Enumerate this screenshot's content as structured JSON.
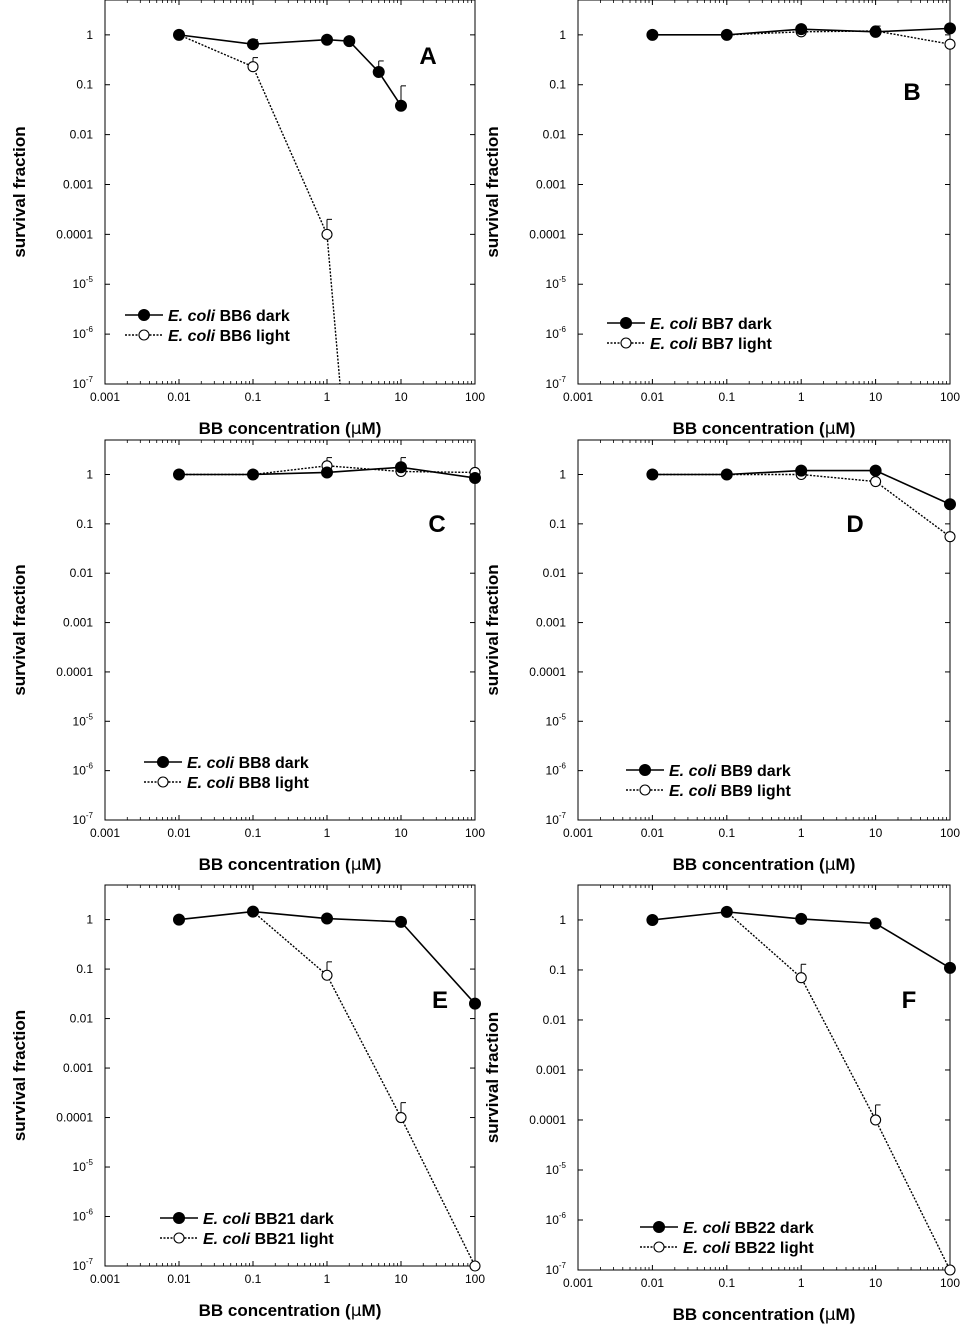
{
  "chart_data": [
    {
      "panel": "A",
      "type": "line",
      "x_scale": "log",
      "y_scale": "log",
      "xlim": [
        0.001,
        100
      ],
      "ylim": [
        1e-07,
        5
      ],
      "xlabel_pre": "BB concentration (",
      "xlabel_mu": "μ",
      "xlabel_post": "M)",
      "ylabel": "survival fraction",
      "x_ticks": [
        "0.001",
        "0.01",
        "0.1",
        "1",
        "10",
        "100"
      ],
      "y_ticks": [
        "1",
        "0.1",
        "0.01",
        "0.001",
        "0.0001",
        "10-5",
        "10-6",
        "10-7"
      ],
      "legend_position": "bottom-left",
      "series": [
        {
          "name_italic": "E. coli",
          "name_rest": " BB6 dark",
          "style": "solid-filled",
          "points": [
            [
              0.01,
              1.0
            ],
            [
              0.1,
              0.65
            ],
            [
              1,
              0.8
            ],
            [
              2,
              0.75
            ],
            [
              5,
              0.18
            ],
            [
              10,
              0.038
            ]
          ],
          "err_upper": [
            null,
            0.8,
            null,
            null,
            0.3,
            0.095
          ]
        },
        {
          "name_italic": "E. coli",
          "name_rest": " BB6 light",
          "style": "dotted-open",
          "points": [
            [
              0.01,
              1.0
            ],
            [
              0.1,
              0.23
            ],
            [
              1,
              0.0001
            ],
            [
              1.5,
              1e-07
            ]
          ],
          "err_upper": [
            null,
            0.35,
            0.0002,
            null
          ],
          "open_marker_count": 3
        }
      ]
    },
    {
      "panel": "B",
      "type": "line",
      "x_scale": "log",
      "y_scale": "log",
      "xlim": [
        0.001,
        100
      ],
      "ylim": [
        1e-07,
        5
      ],
      "xlabel_pre": "BB concentration (",
      "xlabel_mu": "μ",
      "xlabel_post": "M)",
      "ylabel": "survival fraction",
      "x_ticks": [
        "0.001",
        "0.01",
        "0.1",
        "1",
        "10",
        "100"
      ],
      "y_ticks": [
        "1",
        "0.1",
        "0.01",
        "0.001",
        "0.0001",
        "10-5",
        "10-6",
        "10-7"
      ],
      "legend_position": "bottom-right",
      "series": [
        {
          "name_italic": "E. coli",
          "name_rest": " BB7 dark",
          "style": "solid-filled",
          "points": [
            [
              0.01,
              1.0
            ],
            [
              0.1,
              1.0
            ],
            [
              1,
              1.3
            ],
            [
              10,
              1.15
            ],
            [
              100,
              1.35
            ]
          ],
          "err_upper": [
            null,
            null,
            null,
            1.5,
            null
          ]
        },
        {
          "name_italic": "E. coli",
          "name_rest": " BB7 light",
          "style": "dotted-open",
          "points": [
            [
              0.01,
              1.0
            ],
            [
              0.1,
              1.0
            ],
            [
              1,
              1.15
            ],
            [
              10,
              1.2
            ],
            [
              100,
              0.65
            ]
          ],
          "err_upper": [
            null,
            null,
            null,
            null,
            0.9
          ]
        }
      ]
    },
    {
      "panel": "C",
      "type": "line",
      "x_scale": "log",
      "y_scale": "log",
      "xlim": [
        0.001,
        100
      ],
      "ylim": [
        1e-07,
        5
      ],
      "xlabel_pre": "BB concentration (",
      "xlabel_mu": "μ",
      "xlabel_post": "M)",
      "ylabel": "survival fraction",
      "x_ticks": [
        "0.001",
        "0.01",
        "0.1",
        "1",
        "10",
        "100"
      ],
      "y_ticks": [
        "1",
        "0.1",
        "0.01",
        "0.001",
        "0.0001",
        "10-5",
        "10-6",
        "10-7"
      ],
      "legend_position": "bottom-left",
      "series": [
        {
          "name_italic": "E. coli",
          "name_rest": " BB8 dark",
          "style": "solid-filled",
          "points": [
            [
              0.01,
              1.0
            ],
            [
              0.1,
              1.0
            ],
            [
              1,
              1.1
            ],
            [
              10,
              1.4
            ],
            [
              100,
              0.85
            ]
          ],
          "err_upper": [
            null,
            null,
            null,
            2.2,
            null
          ]
        },
        {
          "name_italic": "E. coli",
          "name_rest": " BB8 light",
          "style": "dotted-open",
          "points": [
            [
              0.01,
              1.0
            ],
            [
              0.1,
              1.0
            ],
            [
              1,
              1.5
            ],
            [
              10,
              1.15
            ],
            [
              100,
              1.1
            ]
          ],
          "err_upper": [
            null,
            null,
            2.2,
            null,
            null
          ]
        }
      ]
    },
    {
      "panel": "D",
      "type": "line",
      "x_scale": "log",
      "y_scale": "log",
      "xlim": [
        0.001,
        100
      ],
      "ylim": [
        1e-07,
        5
      ],
      "xlabel_pre": "BB concentration (",
      "xlabel_mu": "μ",
      "xlabel_post": "M)",
      "ylabel": "survival fraction",
      "x_ticks": [
        "0.001",
        "0.01",
        "0.1",
        "1",
        "10",
        "100"
      ],
      "y_ticks": [
        "1",
        "0.1",
        "0.01",
        "0.001",
        "0.0001",
        "10-5",
        "10-6",
        "10-7"
      ],
      "legend_position": "bottom-right",
      "series": [
        {
          "name_italic": "E. coli",
          "name_rest": " BB9 dark",
          "style": "solid-filled",
          "points": [
            [
              0.01,
              1.0
            ],
            [
              0.1,
              1.0
            ],
            [
              1,
              1.2
            ],
            [
              10,
              1.2
            ],
            [
              100,
              0.25
            ]
          ],
          "err_upper": [
            null,
            null,
            null,
            null,
            0.48
          ]
        },
        {
          "name_italic": "E. coli",
          "name_rest": " BB9 light",
          "style": "dotted-open",
          "points": [
            [
              0.01,
              1.0
            ],
            [
              0.1,
              1.0
            ],
            [
              1,
              1.0
            ],
            [
              10,
              0.72
            ],
            [
              100,
              0.055
            ]
          ],
          "err_upper": [
            null,
            null,
            null,
            null,
            0.1
          ]
        }
      ]
    },
    {
      "panel": "E",
      "type": "line",
      "x_scale": "log",
      "y_scale": "log",
      "xlim": [
        0.001,
        100
      ],
      "ylim": [
        1e-07,
        5
      ],
      "xlabel_pre": "BB concentration (",
      "xlabel_mu": "μ",
      "xlabel_post": "M)",
      "ylabel": "survival fraction",
      "x_ticks": [
        "0.001",
        "0.01",
        "0.1",
        "1",
        "10",
        "100"
      ],
      "y_ticks": [
        "1",
        "0.1",
        "0.01",
        "0.001",
        "0.0001",
        "10-5",
        "10-6",
        "10-7"
      ],
      "legend_position": "bottom-left",
      "series": [
        {
          "name_italic": "E. coli",
          "name_rest": " BB21 dark",
          "style": "solid-filled",
          "points": [
            [
              0.01,
              1.0
            ],
            [
              0.1,
              1.45
            ],
            [
              1,
              1.05
            ],
            [
              10,
              0.9
            ],
            [
              100,
              0.02
            ]
          ],
          "err_upper": [
            null,
            null,
            null,
            null,
            null
          ]
        },
        {
          "name_italic": "E. coli",
          "name_rest": " BB21 light",
          "style": "dotted-open",
          "points": [
            [
              0.1,
              1.45
            ],
            [
              1,
              0.075
            ],
            [
              10,
              0.0001
            ],
            [
              100,
              1e-07
            ]
          ],
          "err_upper": [
            null,
            0.14,
            0.0002,
            null
          ],
          "open_marker_count": 3,
          "open_marker_skip": 1
        }
      ]
    },
    {
      "panel": "F",
      "type": "line",
      "x_scale": "log",
      "y_scale": "log",
      "xlim": [
        0.001,
        100
      ],
      "ylim": [
        1e-07,
        5
      ],
      "xlabel_pre": "BB concentration (",
      "xlabel_mu": "μ",
      "xlabel_post": "M)",
      "ylabel": "survival fraction",
      "x_ticks": [
        "0.001",
        "0.01",
        "0.1",
        "1",
        "10",
        "100"
      ],
      "y_ticks": [
        "1",
        "0.1",
        "0.01",
        "0.001",
        "0.0001",
        "10-5",
        "10-6",
        "10-7"
      ],
      "legend_position": "bottom-left",
      "series": [
        {
          "name_italic": "E. coli",
          "name_rest": " BB22 dark",
          "style": "solid-filled",
          "points": [
            [
              0.01,
              1.0
            ],
            [
              0.1,
              1.45
            ],
            [
              1,
              1.05
            ],
            [
              10,
              0.85
            ],
            [
              100,
              0.11
            ]
          ],
          "err_upper": [
            null,
            null,
            null,
            1.0,
            null
          ]
        },
        {
          "name_italic": "E. coli",
          "name_rest": " BB22 light",
          "style": "dotted-open",
          "points": [
            [
              0.1,
              1.45
            ],
            [
              1,
              0.07
            ],
            [
              10,
              0.0001
            ],
            [
              100,
              1e-07
            ]
          ],
          "err_upper": [
            null,
            0.13,
            0.0002,
            null
          ],
          "open_marker_count": 3,
          "open_marker_skip": 1
        }
      ]
    }
  ]
}
